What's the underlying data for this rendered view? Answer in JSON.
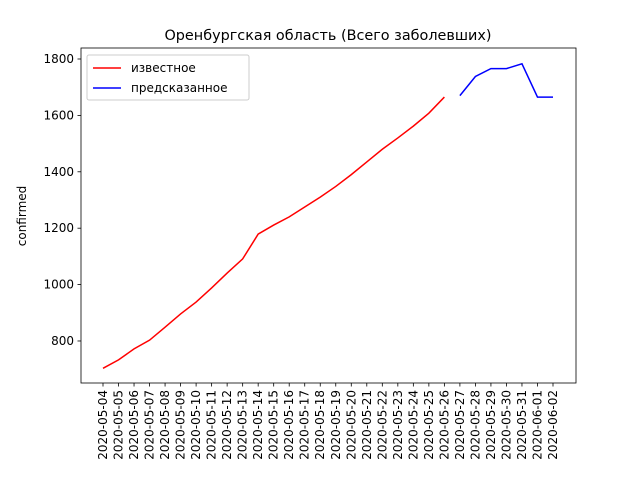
{
  "chart_data": {
    "type": "line",
    "title": "Оренбургская область (Всего заболевших)",
    "y_label": "confirmed",
    "categories": [
      "2020-05-04",
      "2020-05-05",
      "2020-05-06",
      "2020-05-07",
      "2020-05-08",
      "2020-05-09",
      "2020-05-10",
      "2020-05-11",
      "2020-05-12",
      "2020-05-13",
      "2020-05-14",
      "2020-05-15",
      "2020-05-16",
      "2020-05-17",
      "2020-05-18",
      "2020-05-19",
      "2020-05-20",
      "2020-05-21",
      "2020-05-22",
      "2020-05-23",
      "2020-05-24",
      "2020-05-25",
      "2020-05-26",
      "2020-05-27",
      "2020-05-28",
      "2020-05-29",
      "2020-05-30",
      "2020-05-31",
      "2020-06-01",
      "2020-06-02"
    ],
    "series": [
      {
        "name": "известное",
        "color": "#ff0000",
        "values": [
          703,
          733,
          772,
          803,
          849,
          896,
          938,
          988,
          1041,
          1091,
          1179,
          1211,
          1240,
          1275,
          1310,
          1348,
          1390,
          1435,
          1480,
          1520,
          1562,
          1608,
          1665,
          null,
          null,
          null,
          null,
          null,
          null,
          null
        ]
      },
      {
        "name": "предсказанное",
        "color": "#0000ff",
        "values": [
          null,
          null,
          null,
          null,
          null,
          null,
          null,
          null,
          null,
          null,
          null,
          null,
          null,
          null,
          null,
          null,
          null,
          null,
          null,
          null,
          null,
          null,
          null,
          1670,
          1738,
          1766,
          1766,
          1783,
          1665,
          1665
        ]
      }
    ],
    "ylim": [
      651,
      1839
    ],
    "yticks": [
      800,
      1000,
      1200,
      1400,
      1600,
      1800
    ],
    "legend": "upper-left"
  }
}
